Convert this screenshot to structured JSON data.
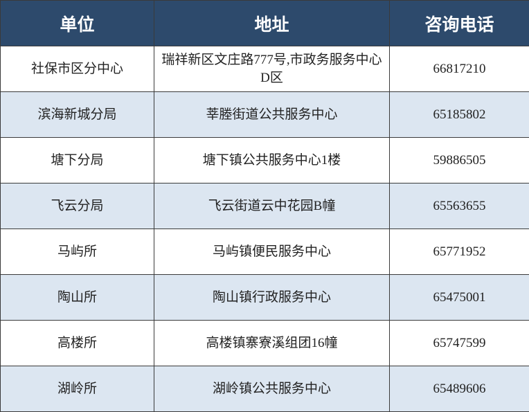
{
  "table": {
    "header": [
      "单位",
      "地址",
      "咨询电话"
    ],
    "rows": [
      [
        "社保市区分中心",
        "瑞祥新区文庄路777号,市政务服务中心D区",
        "66817210"
      ],
      [
        "滨海新城分局",
        "莘塍街道公共服务中心",
        "65185802"
      ],
      [
        "塘下分局",
        "塘下镇公共服务中心1楼",
        "59886505"
      ],
      [
        "飞云分局",
        "飞云街道云中花园B幢",
        "65563655"
      ],
      [
        "马屿所",
        "马屿镇便民服务中心",
        "65771952"
      ],
      [
        "陶山所",
        "陶山镇行政服务中心",
        "65475001"
      ],
      [
        "高楼所",
        "高楼镇寨寮溪组团16幢",
        "65747599"
      ],
      [
        "湖岭所",
        "湖岭镇公共服务中心",
        "65489606"
      ]
    ]
  }
}
